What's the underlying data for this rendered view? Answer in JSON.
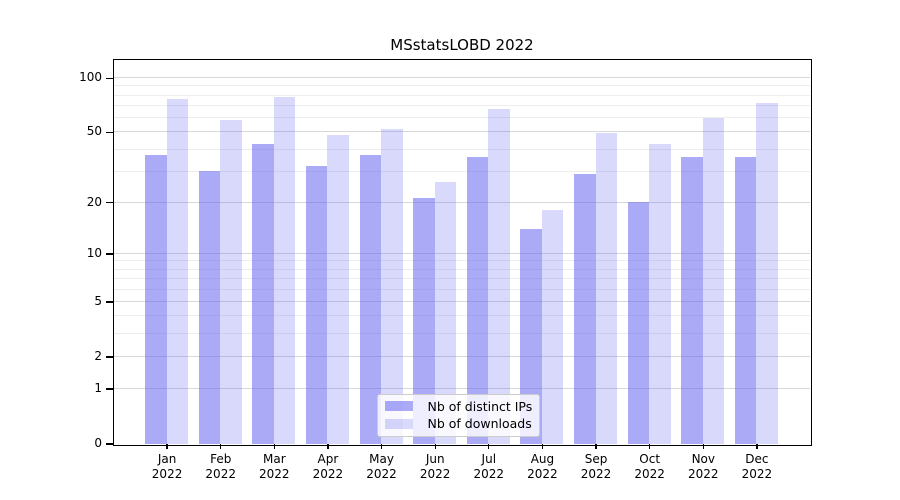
{
  "title": "MSstatsLOBD 2022",
  "legend": {
    "items": [
      {
        "label": "Nb of distinct IPs"
      },
      {
        "label": "Nb of downloads"
      }
    ]
  },
  "colors": {
    "bar_distinct_ips": "rgba(100,100,240,0.55)",
    "bar_downloads": "rgba(100,100,240,0.245)",
    "grid_major": "#d8d8d8",
    "grid_minor": "#ededed",
    "axis": "#000000"
  },
  "chart_data": {
    "type": "bar",
    "title": "MSstatsLOBD 2022",
    "categories": [
      "Jan 2022",
      "Feb 2022",
      "Mar 2022",
      "Apr 2022",
      "May 2022",
      "Jun 2022",
      "Jul 2022",
      "Aug 2022",
      "Sep 2022",
      "Oct 2022",
      "Nov 2022",
      "Dec 2022"
    ],
    "series": [
      {
        "name": "Nb of distinct IPs",
        "color": "rgba(100,100,240,0.55)",
        "values": [
          37,
          30,
          43,
          32,
          37,
          21,
          36,
          14,
          29,
          20,
          36,
          36
        ]
      },
      {
        "name": "Nb of downloads",
        "color": "rgba(100,100,240,0.245)",
        "values": [
          76,
          58,
          78,
          48,
          52,
          26,
          67,
          18,
          49,
          43,
          60,
          72
        ]
      }
    ],
    "xlabel": "",
    "ylabel": "",
    "yscale": "log1p",
    "ylim": [
      0,
      126
    ],
    "yticks": [
      0,
      1,
      2,
      5,
      10,
      20,
      50,
      100
    ],
    "yminorticks": [
      3,
      4,
      6,
      7,
      8,
      9,
      30,
      40,
      60,
      70,
      80,
      90
    ],
    "grid": true,
    "legend_position": "lower center"
  }
}
